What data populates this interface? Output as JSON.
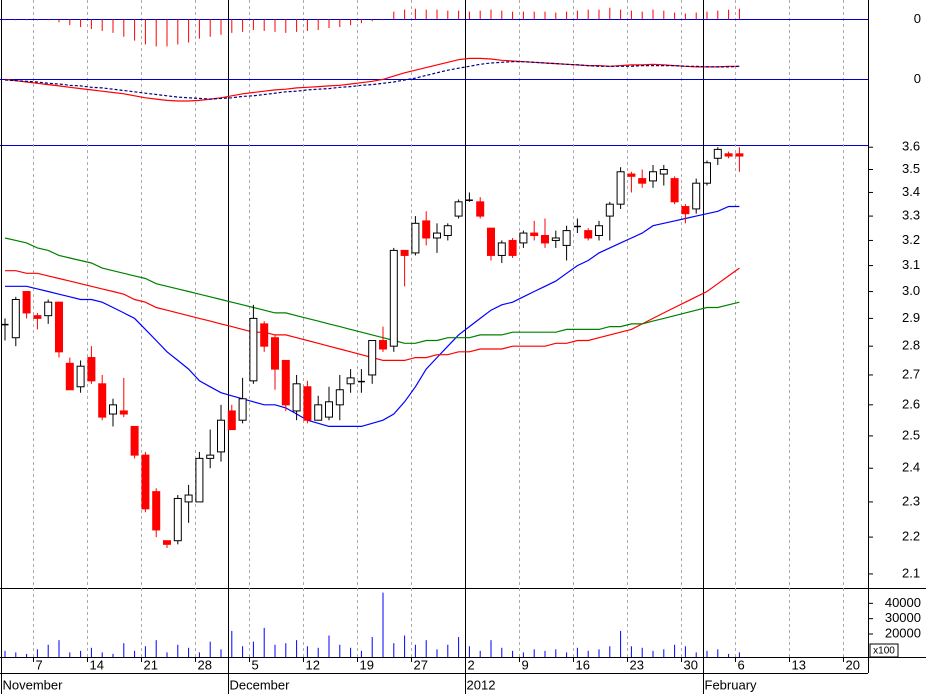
{
  "chart_data": [
    {
      "type": "bar",
      "color": "#ff0000",
      "ylim": [
        -0.04,
        0.02
      ],
      "yticks": [
        0
      ],
      "values": [
        -0.001,
        -0.001,
        -0.001,
        -0.001,
        -0.001,
        -0.003,
        -0.006,
        -0.008,
        -0.01,
        -0.012,
        -0.014,
        -0.018,
        -0.022,
        -0.026,
        -0.028,
        -0.028,
        -0.026,
        -0.024,
        -0.02,
        -0.018,
        -0.016,
        -0.014,
        -0.013,
        -0.011,
        -0.012,
        -0.013,
        -0.014,
        -0.013,
        -0.012,
        -0.011,
        -0.009,
        -0.008,
        -0.006,
        -0.004,
        -0.002,
        -0.001,
        0.008,
        0.01,
        0.011,
        0.01,
        0.01,
        0.009,
        0.009,
        0.008,
        0.009,
        0.01,
        0.009,
        0.008,
        0.008,
        0.008,
        0.008,
        0.007,
        0.008,
        0.009,
        0.01,
        0.01,
        0.012,
        0.01,
        0.009,
        0.008,
        0.01,
        0.009,
        0.007,
        0.006,
        0.007,
        0.008,
        0.009,
        0.01,
        0.011,
        null,
        null,
        null,
        null,
        null,
        null,
        null,
        null,
        null,
        null,
        null
      ]
    },
    {
      "type": "line",
      "ylim": [
        -0.1,
        0.06
      ],
      "yticks": [
        0
      ],
      "series": [
        {
          "color": "#ff0000",
          "values": [
            0,
            -0.002,
            -0.004,
            -0.006,
            -0.008,
            -0.01,
            -0.012,
            -0.014,
            -0.016,
            -0.018,
            -0.02,
            -0.022,
            -0.025,
            -0.028,
            -0.03,
            -0.032,
            -0.033,
            -0.033,
            -0.032,
            -0.03,
            -0.028,
            -0.025,
            -0.022,
            -0.02,
            -0.018,
            -0.016,
            -0.015,
            -0.013,
            -0.012,
            -0.011,
            -0.01,
            -0.009,
            -0.007,
            -0.005,
            -0.003,
            0,
            0.005,
            0.01,
            0.014,
            0.018,
            0.022,
            0.026,
            0.03,
            0.032,
            0.032,
            0.031,
            0.029,
            0.028,
            0.027,
            0.026,
            0.025,
            0.024,
            0.023,
            0.022,
            0.021,
            0.021,
            0.02,
            0.021,
            0.022,
            0.022,
            0.023,
            0.022,
            0.021,
            0.02,
            0.019,
            0.019,
            0.019,
            0.02,
            0.02,
            null,
            null,
            null,
            null,
            null,
            null,
            null,
            null,
            null,
            null,
            null
          ]
        },
        {
          "color": "#000080",
          "dashed": true,
          "values": [
            -0.001,
            -0.002,
            -0.003,
            -0.004,
            -0.006,
            -0.007,
            -0.009,
            -0.01,
            -0.012,
            -0.013,
            -0.015,
            -0.017,
            -0.019,
            -0.021,
            -0.023,
            -0.025,
            -0.027,
            -0.028,
            -0.029,
            -0.03,
            -0.029,
            -0.028,
            -0.026,
            -0.025,
            -0.023,
            -0.021,
            -0.019,
            -0.018,
            -0.016,
            -0.015,
            -0.014,
            -0.012,
            -0.011,
            -0.009,
            -0.008,
            -0.006,
            -0.004,
            -0.001,
            0.002,
            0.006,
            0.01,
            0.014,
            0.017,
            0.02,
            0.023,
            0.025,
            0.026,
            0.027,
            0.027,
            0.026,
            0.025,
            0.024,
            0.023,
            0.022,
            0.021,
            0.02,
            0.02,
            0.02,
            0.02,
            0.021,
            0.021,
            0.021,
            0.021,
            0.02,
            0.02,
            0.019,
            0.019,
            0.019,
            0.02,
            null,
            null,
            null,
            null,
            null,
            null,
            null,
            null,
            null,
            null,
            null
          ]
        }
      ]
    },
    {
      "type": "candlestick",
      "log": true,
      "ylim": [
        2.063,
        3.61
      ],
      "up_color": "#ffffff",
      "down_color": "#ff0000",
      "yticks": [
        3.6,
        3.5,
        3.4,
        3.3,
        3.2,
        3.1,
        {
          "value": 3,
          "label": "3.0"
        },
        2.9,
        2.8,
        2.7,
        2.6,
        2.5,
        2.4,
        2.3,
        2.2,
        2.1
      ],
      "categories": [
        null,
        null,
        null,
        "7",
        null,
        null,
        null,
        null,
        "14",
        null,
        null,
        null,
        null,
        "21",
        null,
        null,
        null,
        null,
        "28",
        null,
        null,
        null,
        null,
        "5",
        null,
        null,
        null,
        null,
        "12",
        null,
        null,
        null,
        null,
        "19",
        null,
        null,
        null,
        null,
        "27",
        null,
        null,
        null,
        null,
        "2",
        null,
        null,
        null,
        null,
        "9",
        null,
        null,
        null,
        null,
        "16",
        null,
        null,
        null,
        null,
        "23",
        null,
        null,
        null,
        null,
        "30",
        null,
        null,
        null,
        null,
        "6",
        null,
        null,
        null,
        null,
        "13",
        null,
        null,
        null,
        null,
        "20",
        null
      ],
      "months": [
        "November",
        null,
        null,
        null,
        null,
        null,
        null,
        null,
        null,
        null,
        null,
        null,
        null,
        null,
        null,
        null,
        null,
        null,
        null,
        null,
        null,
        "December",
        null,
        null,
        null,
        null,
        null,
        null,
        null,
        null,
        null,
        null,
        null,
        null,
        null,
        null,
        null,
        null,
        null,
        null,
        null,
        null,
        null,
        "2012",
        null,
        null,
        null,
        null,
        null,
        null,
        null,
        null,
        null,
        null,
        null,
        null,
        null,
        null,
        null,
        null,
        null,
        null,
        null,
        null,
        null,
        "February",
        null,
        null,
        null,
        null,
        null,
        null,
        null,
        null,
        null,
        null,
        null,
        null,
        null,
        null
      ],
      "open": [
        2.88,
        2.83,
        3.0,
        2.91,
        2.91,
        2.96,
        2.74,
        2.66,
        2.76,
        2.67,
        2.57,
        2.58,
        2.53,
        2.44,
        2.33,
        2.19,
        2.19,
        2.3,
        2.3,
        2.43,
        2.45,
        2.58,
        2.55,
        2.68,
        2.88,
        2.83,
        2.75,
        2.58,
        2.66,
        2.55,
        2.56,
        2.6,
        2.67,
        2.68,
        2.7,
        2.82,
        2.8,
        3.16,
        3.15,
        3.28,
        3.21,
        3.22,
        3.3,
        3.37,
        3.36,
        3.25,
        3.14,
        3.2,
        3.19,
        3.23,
        3.22,
        3.2,
        3.18,
        3.26,
        3.24,
        3.22,
        3.3,
        3.35,
        3.48,
        3.46,
        3.45,
        3.48,
        3.46,
        3.34,
        3.33,
        3.44,
        3.55,
        3.57,
        3.57,
        null,
        null,
        null,
        null,
        null,
        null,
        null,
        null,
        null,
        null,
        null
      ],
      "high": [
        2.9,
        2.98,
        3.0,
        2.92,
        2.97,
        2.96,
        2.76,
        2.75,
        2.8,
        2.7,
        2.62,
        2.69,
        2.53,
        2.45,
        2.34,
        2.19,
        2.32,
        2.35,
        2.45,
        2.52,
        2.6,
        2.6,
        2.69,
        2.95,
        2.89,
        2.84,
        2.75,
        2.7,
        2.68,
        2.63,
        2.66,
        2.7,
        2.72,
        2.72,
        2.82,
        2.87,
        3.17,
        3.16,
        3.3,
        3.32,
        3.27,
        3.27,
        3.37,
        3.4,
        3.38,
        3.25,
        3.2,
        3.21,
        3.24,
        3.28,
        3.29,
        3.24,
        3.26,
        3.29,
        3.25,
        3.28,
        3.36,
        3.51,
        3.49,
        3.5,
        3.52,
        3.52,
        3.47,
        3.35,
        3.46,
        3.54,
        3.6,
        3.58,
        3.6,
        null,
        null,
        null,
        null,
        null,
        null,
        null,
        null,
        null,
        null,
        null
      ],
      "low": [
        2.82,
        2.8,
        2.9,
        2.86,
        2.88,
        2.76,
        2.65,
        2.64,
        2.67,
        2.55,
        2.53,
        2.56,
        2.43,
        2.27,
        2.2,
        2.17,
        2.18,
        2.24,
        2.3,
        2.4,
        2.42,
        2.52,
        2.54,
        2.67,
        2.78,
        2.65,
        2.58,
        2.55,
        2.54,
        2.55,
        2.55,
        2.55,
        2.64,
        2.64,
        2.67,
        2.78,
        2.78,
        3.02,
        3.14,
        3.18,
        3.15,
        3.2,
        3.29,
        3.36,
        3.29,
        3.12,
        3.11,
        3.13,
        3.17,
        3.2,
        3.17,
        3.17,
        3.12,
        3.23,
        3.2,
        3.2,
        3.2,
        3.33,
        3.4,
        3.42,
        3.42,
        3.43,
        3.35,
        3.27,
        3.31,
        3.43,
        3.52,
        3.55,
        3.49,
        null,
        null,
        null,
        null,
        null,
        null,
        null,
        null,
        null,
        null,
        null
      ],
      "close": [
        2.88,
        2.97,
        2.92,
        2.9,
        2.96,
        2.78,
        2.65,
        2.73,
        2.68,
        2.56,
        2.6,
        2.57,
        2.44,
        2.28,
        2.22,
        2.18,
        2.31,
        2.32,
        2.43,
        2.44,
        2.55,
        2.52,
        2.62,
        2.9,
        2.8,
        2.72,
        2.6,
        2.67,
        2.55,
        2.6,
        2.61,
        2.65,
        2.69,
        2.68,
        2.82,
        2.79,
        3.16,
        3.14,
        3.27,
        3.21,
        3.23,
        3.26,
        3.36,
        3.37,
        3.3,
        3.14,
        3.19,
        3.14,
        3.23,
        3.22,
        3.19,
        3.21,
        3.24,
        3.26,
        3.21,
        3.26,
        3.35,
        3.49,
        3.47,
        3.44,
        3.49,
        3.5,
        3.36,
        3.31,
        3.44,
        3.53,
        3.59,
        3.56,
        3.56,
        null,
        null,
        null,
        null,
        null,
        null,
        null,
        null,
        null,
        null,
        null
      ],
      "series": [
        {
          "color": "#0000ff",
          "values": [
            3.02,
            3.02,
            3.02,
            3.01,
            3.0,
            2.99,
            2.98,
            2.97,
            2.97,
            2.96,
            2.94,
            2.92,
            2.9,
            2.86,
            2.82,
            2.78,
            2.75,
            2.72,
            2.68,
            2.66,
            2.64,
            2.63,
            2.62,
            2.61,
            2.6,
            2.6,
            2.59,
            2.57,
            2.55,
            2.54,
            2.53,
            2.53,
            2.53,
            2.53,
            2.54,
            2.55,
            2.57,
            2.61,
            2.66,
            2.72,
            2.76,
            2.8,
            2.84,
            2.87,
            2.9,
            2.93,
            2.95,
            2.96,
            2.98,
            3.0,
            3.02,
            3.04,
            3.07,
            3.1,
            3.12,
            3.15,
            3.17,
            3.19,
            3.21,
            3.23,
            3.26,
            3.27,
            3.28,
            3.29,
            3.3,
            3.31,
            3.32,
            3.34,
            3.34,
            null,
            null,
            null,
            null,
            null,
            null,
            null,
            null,
            null,
            null,
            null
          ]
        },
        {
          "color": "#ff0000",
          "values": [
            3.08,
            3.08,
            3.07,
            3.07,
            3.06,
            3.05,
            3.04,
            3.03,
            3.02,
            3.01,
            3.0,
            2.99,
            2.97,
            2.96,
            2.94,
            2.93,
            2.92,
            2.91,
            2.9,
            2.89,
            2.88,
            2.87,
            2.86,
            2.85,
            2.85,
            2.84,
            2.84,
            2.83,
            2.82,
            2.81,
            2.8,
            2.79,
            2.78,
            2.77,
            2.76,
            2.75,
            2.75,
            2.75,
            2.76,
            2.76,
            2.77,
            2.77,
            2.78,
            2.78,
            2.79,
            2.79,
            2.79,
            2.8,
            2.8,
            2.8,
            2.8,
            2.81,
            2.81,
            2.82,
            2.82,
            2.83,
            2.84,
            2.85,
            2.86,
            2.88,
            2.9,
            2.92,
            2.94,
            2.96,
            2.98,
            3.0,
            3.03,
            3.06,
            3.09,
            null,
            null,
            null,
            null,
            null,
            null,
            null,
            null,
            null,
            null,
            null
          ]
        },
        {
          "color": "#008000",
          "values": [
            3.21,
            3.2,
            3.19,
            3.17,
            3.16,
            3.14,
            3.13,
            3.12,
            3.11,
            3.09,
            3.08,
            3.07,
            3.06,
            3.05,
            3.03,
            3.02,
            3.01,
            3.0,
            2.99,
            2.98,
            2.97,
            2.96,
            2.95,
            2.94,
            2.93,
            2.92,
            2.92,
            2.91,
            2.9,
            2.89,
            2.88,
            2.87,
            2.86,
            2.85,
            2.84,
            2.83,
            2.82,
            2.81,
            2.81,
            2.82,
            2.82,
            2.83,
            2.83,
            2.83,
            2.84,
            2.84,
            2.84,
            2.85,
            2.85,
            2.85,
            2.85,
            2.85,
            2.86,
            2.86,
            2.86,
            2.86,
            2.87,
            2.87,
            2.88,
            2.88,
            2.89,
            2.9,
            2.91,
            2.92,
            2.93,
            2.94,
            2.94,
            2.95,
            2.96,
            null,
            null,
            null,
            null,
            null,
            null,
            null,
            null,
            null,
            null,
            null
          ]
        }
      ]
    },
    {
      "type": "bar",
      "color": "#0000ff",
      "ylim": [
        5000,
        50000
      ],
      "yticks": [
        40000,
        30000,
        20000
      ],
      "y_unit_label": "x100",
      "values": [
        9000,
        8000,
        7000,
        10000,
        13000,
        16000,
        8000,
        9000,
        11000,
        8000,
        7000,
        14000,
        9000,
        12000,
        16000,
        8000,
        13000,
        11000,
        8000,
        15000,
        10000,
        22000,
        12000,
        15000,
        24000,
        13000,
        14000,
        16000,
        12000,
        11000,
        19000,
        13000,
        11000,
        9000,
        18000,
        47000,
        14000,
        19000,
        13000,
        16000,
        10000,
        13000,
        18000,
        12000,
        9000,
        16000,
        11000,
        9000,
        8000,
        10000,
        9000,
        10000,
        8000,
        11000,
        9000,
        10000,
        12000,
        22000,
        12000,
        11000,
        9000,
        10000,
        13000,
        12000,
        8000,
        9000,
        10000,
        7000,
        8000,
        null,
        null,
        null,
        null,
        null,
        null,
        null,
        null,
        null,
        null,
        null
      ]
    }
  ]
}
